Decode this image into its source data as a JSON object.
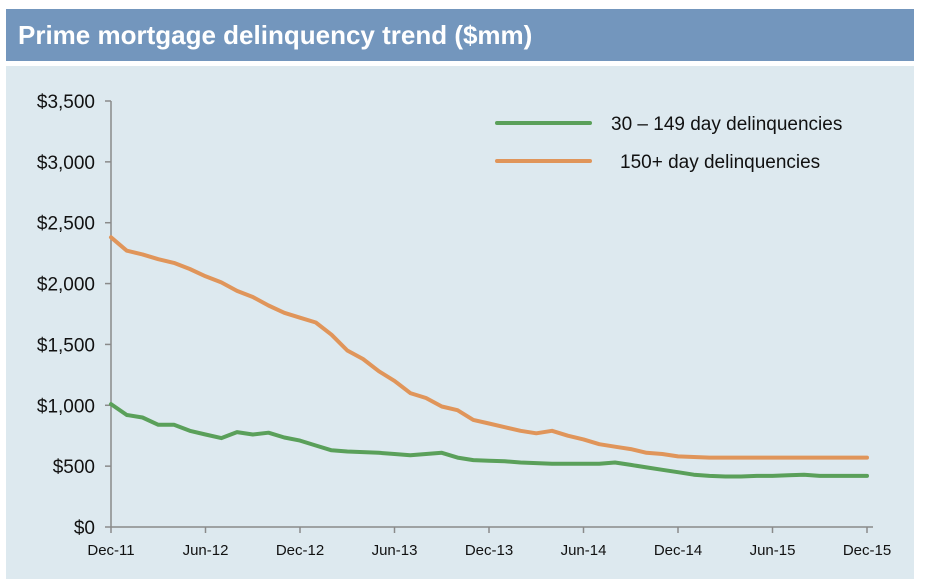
{
  "title": "Prime mortgage delinquency trend ($mm)",
  "colors": {
    "header": "#7396bd",
    "panel": "#dde9ef",
    "series_30_149": "#5aa05a",
    "series_150": "#e0955a"
  },
  "chart_data": {
    "type": "line",
    "title": "Prime mortgage delinquency trend ($mm)",
    "xlabel": "",
    "ylabel": "",
    "ylim": [
      0,
      3500
    ],
    "y_ticks": [
      "$0",
      "$500",
      "$1,000",
      "$1,500",
      "$2,000",
      "$2,500",
      "$3,000",
      "$3,500"
    ],
    "y_tick_values": [
      0,
      500,
      1000,
      1500,
      2000,
      2500,
      3000,
      3500
    ],
    "x_ticks": [
      "Dec-11",
      "Jun-12",
      "Dec-12",
      "Jun-13",
      "Dec-13",
      "Jun-14",
      "Dec-14",
      "Jun-15",
      "Dec-15"
    ],
    "x": [
      "2011-12",
      "2012-01",
      "2012-02",
      "2012-03",
      "2012-04",
      "2012-05",
      "2012-06",
      "2012-07",
      "2012-08",
      "2012-09",
      "2012-10",
      "2012-11",
      "2012-12",
      "2013-01",
      "2013-02",
      "2013-03",
      "2013-04",
      "2013-05",
      "2013-06",
      "2013-07",
      "2013-08",
      "2013-09",
      "2013-10",
      "2013-11",
      "2013-12",
      "2014-01",
      "2014-02",
      "2014-03",
      "2014-04",
      "2014-05",
      "2014-06",
      "2014-07",
      "2014-08",
      "2014-09",
      "2014-10",
      "2014-11",
      "2014-12",
      "2015-01",
      "2015-02",
      "2015-03",
      "2015-04",
      "2015-05",
      "2015-06",
      "2015-07",
      "2015-08",
      "2015-09",
      "2015-10",
      "2015-11",
      "2015-12"
    ],
    "legend_position": "top-right",
    "grid": false,
    "series": [
      {
        "name": "30 – 149 day delinquencies",
        "color": "#5aa05a",
        "values": [
          1010,
          920,
          900,
          840,
          840,
          790,
          760,
          730,
          780,
          760,
          775,
          735,
          710,
          670,
          630,
          620,
          615,
          610,
          600,
          590,
          600,
          610,
          570,
          550,
          545,
          540,
          530,
          525,
          520,
          520,
          520,
          520,
          530,
          510,
          490,
          470,
          450,
          430,
          420,
          415,
          415,
          420,
          420,
          425,
          430,
          420,
          420,
          420,
          420
        ]
      },
      {
        "name": "150+ day delinquencies",
        "color": "#e0955a",
        "values": [
          2380,
          2270,
          2240,
          2200,
          2170,
          2120,
          2060,
          2010,
          1940,
          1890,
          1820,
          1760,
          1720,
          1680,
          1580,
          1450,
          1380,
          1280,
          1200,
          1100,
          1060,
          990,
          960,
          880,
          850,
          820,
          790,
          770,
          790,
          750,
          720,
          680,
          660,
          640,
          610,
          600,
          580,
          575,
          570,
          570,
          570,
          570,
          570,
          570,
          570,
          570,
          570,
          570,
          570
        ]
      }
    ]
  }
}
